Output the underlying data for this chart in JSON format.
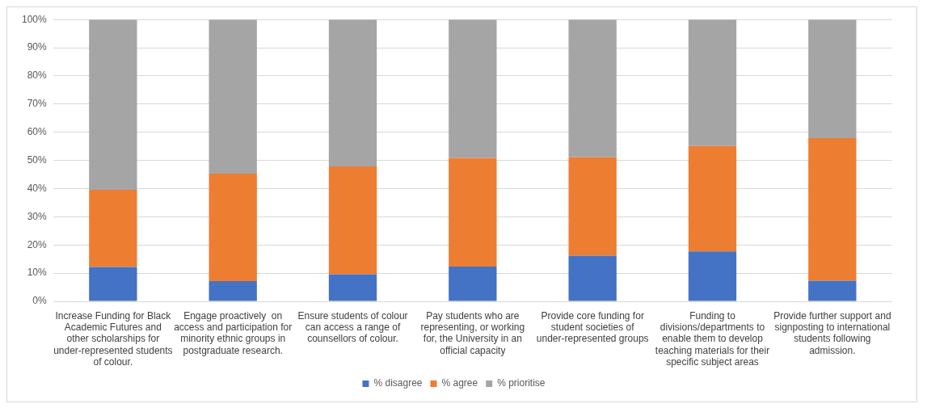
{
  "chart_data": {
    "type": "bar",
    "stacked": true,
    "categories": [
      "Increase Funding for Black Academic Futures and other scholarships for under-represented students of colour.",
      "Engage proactively  on access and participation for minority ethnic groups in postgraduate research.",
      "Ensure students of colour can access a range of counsellors of colour.",
      "Pay students who are representing, or working for, the University in an official capacity",
      "Provide core funding for student societies of under-represented groups",
      "Funding to divisions/departments to enable them to develop teaching materials for their specific subject areas",
      "Provide further support and signposting to international students following admission."
    ],
    "series": [
      {
        "name": "% disagree",
        "color": "#4472c4",
        "values": [
          12.2,
          7.2,
          9.6,
          12.3,
          16.2,
          17.7,
          7.3
        ]
      },
      {
        "name": "% agree",
        "color": "#ed7d31",
        "values": [
          27.4,
          38.1,
          38.3,
          38.6,
          34.9,
          37.4,
          50.6
        ]
      },
      {
        "name": "% prioritise",
        "color": "#a5a5a5",
        "values": [
          60.4,
          54.7,
          52.1,
          49.1,
          48.9,
          44.9,
          42.1
        ]
      }
    ],
    "ylim": [
      0,
      100
    ],
    "yticks": [
      {
        "value": 0,
        "label": "0%"
      },
      {
        "value": 10,
        "label": "10%"
      },
      {
        "value": 20,
        "label": "20%"
      },
      {
        "value": 30,
        "label": "30%"
      },
      {
        "value": 40,
        "label": "40%"
      },
      {
        "value": 50,
        "label": "50%"
      },
      {
        "value": 60,
        "label": "60%"
      },
      {
        "value": 70,
        "label": "70%"
      },
      {
        "value": 80,
        "label": "80%"
      },
      {
        "value": 90,
        "label": "90%"
      },
      {
        "value": 100,
        "label": "100%"
      }
    ],
    "grid": "y",
    "legend": "bottom"
  }
}
